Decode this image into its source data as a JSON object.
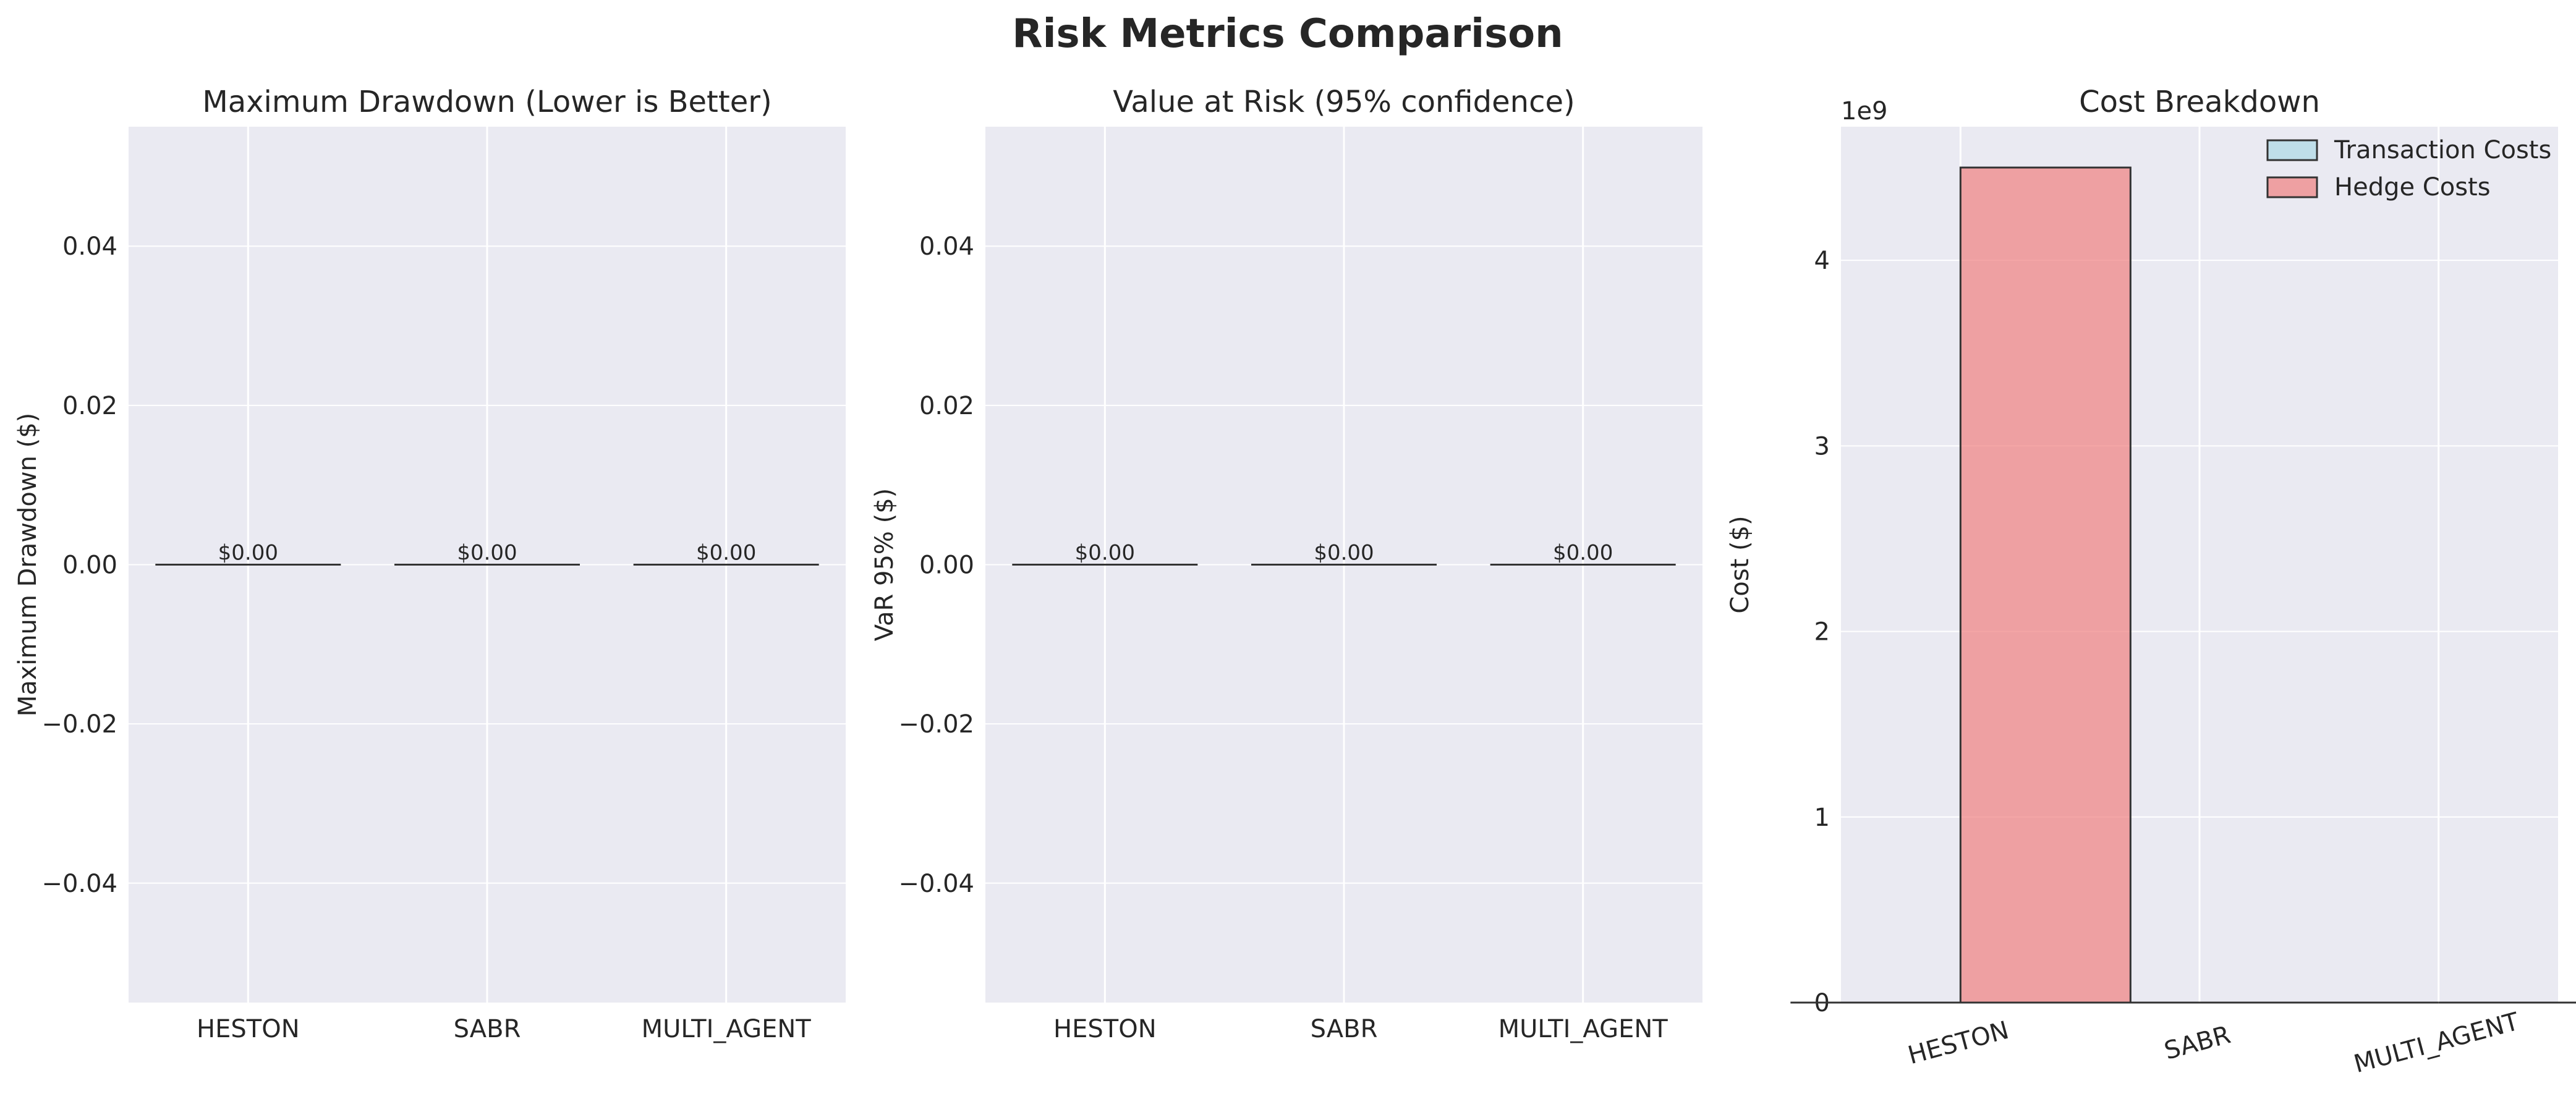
{
  "figure": {
    "title": "Risk Metrics Comparison"
  },
  "colors": {
    "axes_bg": "#eaeaf2",
    "grid": "#ffffff",
    "bar_edge": "#333333",
    "transaction_costs": "#add8e6",
    "hedge_costs": "#f08080"
  },
  "chart_data": [
    {
      "type": "bar",
      "title": "Maximum Drawdown (Lower is Better)",
      "xlabel": "",
      "ylabel": "Maximum Drawdown ($)",
      "categories": [
        "HESTON",
        "SABR",
        "MULTI_AGENT"
      ],
      "values": [
        0,
        0,
        0
      ],
      "data_labels": [
        "$0.00",
        "$0.00",
        "$0.00"
      ],
      "ylim": [
        -0.055,
        0.055
      ],
      "yticks": [
        -0.04,
        -0.02,
        0.0,
        0.02,
        0.04
      ],
      "ytick_labels": [
        "−0.04",
        "−0.02",
        "0.00",
        "0.02",
        "0.04"
      ],
      "grid": true
    },
    {
      "type": "bar",
      "title": "Value at Risk (95% confidence)",
      "xlabel": "",
      "ylabel": "VaR 95% ($)",
      "categories": [
        "HESTON",
        "SABR",
        "MULTI_AGENT"
      ],
      "values": [
        0,
        0,
        0
      ],
      "data_labels": [
        "$0.00",
        "$0.00",
        "$0.00"
      ],
      "ylim": [
        -0.055,
        0.055
      ],
      "yticks": [
        -0.04,
        -0.02,
        0.0,
        0.02,
        0.04
      ],
      "ytick_labels": [
        "−0.04",
        "−0.02",
        "0.00",
        "0.02",
        "0.04"
      ],
      "grid": true
    },
    {
      "type": "bar",
      "title": "Cost Breakdown",
      "xlabel": "",
      "ylabel": "Cost ($)",
      "categories": [
        "HESTON",
        "SABR",
        "MULTI_AGENT"
      ],
      "series": [
        {
          "name": "Transaction Costs",
          "values": [
            0,
            0,
            0
          ]
        },
        {
          "name": "Hedge Costs",
          "values": [
            4500000000,
            0,
            0
          ]
        }
      ],
      "ylim": [
        0,
        4720000000
      ],
      "yticks": [
        0,
        1000000000,
        2000000000,
        3000000000,
        4000000000
      ],
      "ytick_labels": [
        "0",
        "1",
        "2",
        "3",
        "4"
      ],
      "y_offset_label": "1e9",
      "legend": "top-right",
      "xtick_rotation": -15,
      "grid": true
    }
  ]
}
